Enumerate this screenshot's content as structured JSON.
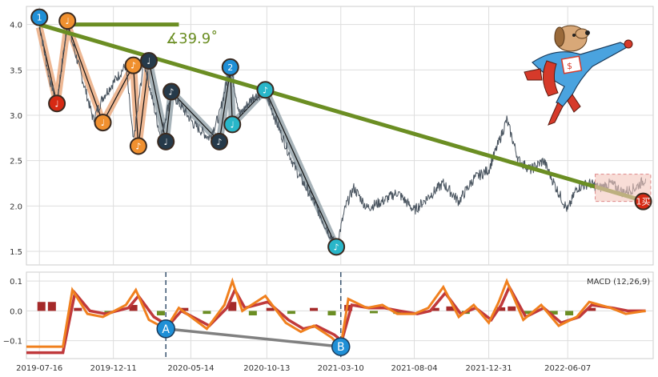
{
  "chart_data": {
    "type": "line",
    "x_tick_labels": [
      "2019-07-16",
      "2019-12-11",
      "2020-05-14",
      "2020-10-13",
      "2021-03-10",
      "2021-08-04",
      "2021-12-31",
      "2022-06-07"
    ],
    "x_tick_dates": [
      "2019-07-16",
      "2019-12-11",
      "2020-05-14",
      "2020-10-13",
      "2021-03-10",
      "2021-08-04",
      "2021-12-31",
      "2022-06-07"
    ],
    "x_range": [
      "2019-06-20",
      "2022-11-25"
    ],
    "price": {
      "ylim": [
        1.35,
        4.2
      ],
      "yticks": [
        "1.5",
        "2.0",
        "2.5",
        "3.0",
        "3.5",
        "4.0"
      ],
      "ytick_values": [
        1.5,
        2.0,
        2.5,
        3.0,
        3.5,
        4.0
      ],
      "series": [
        {
          "date": "2019-07-16",
          "value": 4.0
        },
        {
          "date": "2019-08-05",
          "value": 3.4
        },
        {
          "date": "2019-08-20",
          "value": 3.15
        },
        {
          "date": "2019-09-10",
          "value": 4.0
        },
        {
          "date": "2019-10-15",
          "value": 3.3
        },
        {
          "date": "2019-11-01",
          "value": 2.95
        },
        {
          "date": "2019-11-20",
          "value": 3.2
        },
        {
          "date": "2020-01-05",
          "value": 3.55
        },
        {
          "date": "2020-01-20",
          "value": 2.7
        },
        {
          "date": "2020-02-10",
          "value": 3.6
        },
        {
          "date": "2020-03-15",
          "value": 2.75
        },
        {
          "date": "2020-04-05",
          "value": 3.25
        },
        {
          "date": "2020-05-20",
          "value": 2.9
        },
        {
          "date": "2020-06-20",
          "value": 2.75
        },
        {
          "date": "2020-07-10",
          "value": 3.0
        },
        {
          "date": "2020-08-01",
          "value": 3.55
        },
        {
          "date": "2020-08-20",
          "value": 3.0
        },
        {
          "date": "2020-09-15",
          "value": 3.2
        },
        {
          "date": "2020-10-10",
          "value": 3.25
        },
        {
          "date": "2020-11-10",
          "value": 2.8
        },
        {
          "date": "2020-12-10",
          "value": 2.4
        },
        {
          "date": "2021-01-10",
          "value": 2.1
        },
        {
          "date": "2021-02-10",
          "value": 1.75
        },
        {
          "date": "2021-03-01",
          "value": 1.55
        },
        {
          "date": "2021-03-20",
          "value": 2.0
        },
        {
          "date": "2021-04-05",
          "value": 2.2
        },
        {
          "date": "2021-05-01",
          "value": 1.98
        },
        {
          "date": "2021-06-01",
          "value": 2.05
        },
        {
          "date": "2021-07-01",
          "value": 2.15
        },
        {
          "date": "2021-08-04",
          "value": 1.95
        },
        {
          "date": "2021-09-01",
          "value": 2.1
        },
        {
          "date": "2021-10-01",
          "value": 2.25
        },
        {
          "date": "2021-11-01",
          "value": 2.05
        },
        {
          "date": "2021-12-01",
          "value": 2.3
        },
        {
          "date": "2021-12-31",
          "value": 2.4
        },
        {
          "date": "2022-01-20",
          "value": 2.7
        },
        {
          "date": "2022-02-05",
          "value": 2.95
        },
        {
          "date": "2022-03-01",
          "value": 2.5
        },
        {
          "date": "2022-03-25",
          "value": 2.4
        },
        {
          "date": "2022-04-20",
          "value": 2.5
        },
        {
          "date": "2022-05-15",
          "value": 2.2
        },
        {
          "date": "2022-06-07",
          "value": 1.95
        },
        {
          "date": "2022-06-25",
          "value": 2.2
        },
        {
          "date": "2022-07-20",
          "value": 2.25
        },
        {
          "date": "2022-08-10",
          "value": 2.2
        },
        {
          "date": "2022-09-01",
          "value": 2.25
        },
        {
          "date": "2022-09-25",
          "value": 2.15
        },
        {
          "date": "2022-10-20",
          "value": 2.2
        },
        {
          "date": "2022-11-10",
          "value": 2.3
        }
      ],
      "trendline": [
        {
          "date": "2019-07-16",
          "value": 4.0
        },
        {
          "date": "2022-11-10",
          "value": 2.05
        }
      ],
      "horizontal_ref": [
        {
          "date": "2019-09-10",
          "value": 4.0
        },
        {
          "date": "2020-04-20",
          "value": 4.0
        }
      ],
      "angle_label": "∡39.9˚",
      "markers": [
        {
          "label": "1",
          "date": "2019-07-16",
          "value": 4.08,
          "color": "#1f8fd6"
        },
        {
          "label": "♩",
          "date": "2019-08-20",
          "value": 3.13,
          "color": "#d62a14"
        },
        {
          "label": "♩",
          "date": "2019-09-10",
          "value": 4.04,
          "color": "#f0902f"
        },
        {
          "label": "♩",
          "date": "2019-11-20",
          "value": 2.92,
          "color": "#f0902f"
        },
        {
          "label": "♪",
          "date": "2020-01-20",
          "value": 3.55,
          "color": "#f0902f"
        },
        {
          "label": "♪",
          "date": "2020-01-30",
          "value": 2.66,
          "color": "#f0902f"
        },
        {
          "label": "♩",
          "date": "2020-02-20",
          "value": 3.6,
          "color": "#263a4a"
        },
        {
          "label": "♩",
          "date": "2020-03-25",
          "value": 2.71,
          "color": "#263a4a"
        },
        {
          "label": "♪",
          "date": "2020-04-05",
          "value": 3.26,
          "color": "#263a4a"
        },
        {
          "label": "♪",
          "date": "2020-07-10",
          "value": 2.71,
          "color": "#263a4a"
        },
        {
          "label": "2",
          "date": "2020-08-01",
          "value": 3.53,
          "color": "#1f8fd6"
        },
        {
          "label": "♩",
          "date": "2020-08-05",
          "value": 2.9,
          "color": "#29b6c9"
        },
        {
          "label": "♪",
          "date": "2020-10-10",
          "value": 3.28,
          "color": "#29b6c9"
        },
        {
          "label": "♪",
          "date": "2021-03-01",
          "value": 1.55,
          "color": "#29b6c9"
        },
        {
          "label": "1买",
          "date": "2022-11-05",
          "value": 2.05,
          "color": "#d62a14"
        }
      ],
      "wave_paths": [
        {
          "color": "#e8a070",
          "points": [
            [
              "2019-07-16",
              3.97
            ],
            [
              "2019-08-20",
              3.13
            ],
            [
              "2019-09-10",
              4.0
            ],
            [
              "2019-11-20",
              2.92
            ],
            [
              "2020-01-20",
              3.55
            ],
            [
              "2020-01-30",
              2.66
            ],
            [
              "2020-02-20",
              3.6
            ]
          ]
        },
        {
          "color": "#8a9aa2",
          "points": [
            [
              "2020-02-20",
              3.6
            ],
            [
              "2020-03-25",
              2.71
            ],
            [
              "2020-04-05",
              3.26
            ],
            [
              "2020-07-10",
              2.71
            ],
            [
              "2020-08-01",
              3.5
            ],
            [
              "2020-08-05",
              2.9
            ],
            [
              "2020-10-10",
              3.28
            ],
            [
              "2021-03-01",
              1.55
            ]
          ]
        }
      ],
      "highlight_box": {
        "from": "2022-08-01",
        "to": "2022-11-20",
        "low": 2.05,
        "high": 2.35
      }
    },
    "macd": {
      "label": "MACD (12,26,9)",
      "ylim": [
        -0.16,
        0.13
      ],
      "yticks": [
        "0.1",
        "0.0",
        "−0.1"
      ],
      "ytick_values": [
        0.1,
        0.0,
        -0.1
      ],
      "dif": [
        {
          "date": "2019-06-20",
          "value": -0.12
        },
        {
          "date": "2019-09-01",
          "value": -0.12
        },
        {
          "date": "2019-09-20",
          "value": 0.07
        },
        {
          "date": "2019-10-20",
          "value": -0.01
        },
        {
          "date": "2019-11-20",
          "value": -0.02
        },
        {
          "date": "2020-01-05",
          "value": 0.02
        },
        {
          "date": "2020-01-25",
          "value": 0.07
        },
        {
          "date": "2020-02-20",
          "value": -0.03
        },
        {
          "date": "2020-03-25",
          "value": -0.06
        },
        {
          "date": "2020-04-20",
          "value": 0.01
        },
        {
          "date": "2020-06-15",
          "value": -0.06
        },
        {
          "date": "2020-07-20",
          "value": 0.02
        },
        {
          "date": "2020-08-05",
          "value": 0.1
        },
        {
          "date": "2020-08-25",
          "value": 0.0
        },
        {
          "date": "2020-10-10",
          "value": 0.05
        },
        {
          "date": "2020-11-20",
          "value": -0.04
        },
        {
          "date": "2020-12-20",
          "value": -0.07
        },
        {
          "date": "2021-01-15",
          "value": -0.05
        },
        {
          "date": "2021-02-20",
          "value": -0.09
        },
        {
          "date": "2021-03-10",
          "value": -0.12
        },
        {
          "date": "2021-03-25",
          "value": 0.04
        },
        {
          "date": "2021-05-01",
          "value": 0.01
        },
        {
          "date": "2021-06-01",
          "value": 0.02
        },
        {
          "date": "2021-07-01",
          "value": -0.01
        },
        {
          "date": "2021-08-04",
          "value": -0.01
        },
        {
          "date": "2021-09-01",
          "value": 0.01
        },
        {
          "date": "2021-10-01",
          "value": 0.08
        },
        {
          "date": "2021-11-01",
          "value": -0.02
        },
        {
          "date": "2021-12-01",
          "value": 0.02
        },
        {
          "date": "2021-12-31",
          "value": -0.04
        },
        {
          "date": "2022-01-20",
          "value": 0.03
        },
        {
          "date": "2022-02-05",
          "value": 0.1
        },
        {
          "date": "2022-03-10",
          "value": -0.03
        },
        {
          "date": "2022-04-15",
          "value": 0.02
        },
        {
          "date": "2022-05-20",
          "value": -0.05
        },
        {
          "date": "2022-06-25",
          "value": -0.02
        },
        {
          "date": "2022-07-20",
          "value": 0.03
        },
        {
          "date": "2022-09-01",
          "value": 0.01
        },
        {
          "date": "2022-10-01",
          "value": -0.01
        },
        {
          "date": "2022-11-10",
          "value": 0.0
        }
      ],
      "dea": [
        {
          "date": "2019-06-20",
          "value": -0.14
        },
        {
          "date": "2019-09-01",
          "value": -0.14
        },
        {
          "date": "2019-09-25",
          "value": 0.06
        },
        {
          "date": "2019-10-25",
          "value": 0.0
        },
        {
          "date": "2019-11-25",
          "value": -0.01
        },
        {
          "date": "2020-01-10",
          "value": 0.01
        },
        {
          "date": "2020-01-30",
          "value": 0.05
        },
        {
          "date": "2020-03-01",
          "value": -0.02
        },
        {
          "date": "2020-03-30",
          "value": -0.05
        },
        {
          "date": "2020-04-25",
          "value": 0.0
        },
        {
          "date": "2020-06-20",
          "value": -0.05
        },
        {
          "date": "2020-07-25",
          "value": 0.01
        },
        {
          "date": "2020-08-10",
          "value": 0.07
        },
        {
          "date": "2020-08-30",
          "value": 0.01
        },
        {
          "date": "2020-10-15",
          "value": 0.03
        },
        {
          "date": "2020-11-25",
          "value": -0.03
        },
        {
          "date": "2020-12-25",
          "value": -0.06
        },
        {
          "date": "2021-01-20",
          "value": -0.05
        },
        {
          "date": "2021-02-25",
          "value": -0.08
        },
        {
          "date": "2021-03-12",
          "value": -0.1
        },
        {
          "date": "2021-04-01",
          "value": 0.02
        },
        {
          "date": "2021-05-05",
          "value": 0.01
        },
        {
          "date": "2021-06-05",
          "value": 0.01
        },
        {
          "date": "2021-07-05",
          "value": 0.0
        },
        {
          "date": "2021-08-10",
          "value": -0.01
        },
        {
          "date": "2021-09-05",
          "value": 0.0
        },
        {
          "date": "2021-10-05",
          "value": 0.06
        },
        {
          "date": "2021-11-05",
          "value": -0.01
        },
        {
          "date": "2021-12-05",
          "value": 0.01
        },
        {
          "date": "2022-01-05",
          "value": -0.03
        },
        {
          "date": "2022-01-25",
          "value": 0.02
        },
        {
          "date": "2022-02-10",
          "value": 0.08
        },
        {
          "date": "2022-03-15",
          "value": -0.02
        },
        {
          "date": "2022-04-20",
          "value": 0.01
        },
        {
          "date": "2022-05-25",
          "value": -0.04
        },
        {
          "date": "2022-06-30",
          "value": -0.02
        },
        {
          "date": "2022-07-25",
          "value": 0.02
        },
        {
          "date": "2022-09-05",
          "value": 0.01
        },
        {
          "date": "2022-10-05",
          "value": 0.0
        },
        {
          "date": "2022-11-10",
          "value": 0.0
        }
      ],
      "hist": [
        {
          "date": "2019-07-20",
          "value": 0.03
        },
        {
          "date": "2019-08-10",
          "value": 0.03
        },
        {
          "date": "2019-10-01",
          "value": 0.01
        },
        {
          "date": "2019-12-01",
          "value": -0.01
        },
        {
          "date": "2020-01-20",
          "value": 0.02
        },
        {
          "date": "2020-03-15",
          "value": -0.015
        },
        {
          "date": "2020-05-01",
          "value": 0.01
        },
        {
          "date": "2020-06-15",
          "value": -0.01
        },
        {
          "date": "2020-08-05",
          "value": 0.03
        },
        {
          "date": "2020-09-15",
          "value": -0.015
        },
        {
          "date": "2020-10-20",
          "value": 0.01
        },
        {
          "date": "2020-12-01",
          "value": -0.01
        },
        {
          "date": "2021-01-15",
          "value": 0.01
        },
        {
          "date": "2021-02-20",
          "value": -0.015
        },
        {
          "date": "2021-03-25",
          "value": 0.02
        },
        {
          "date": "2021-05-15",
          "value": -0.008
        },
        {
          "date": "2021-07-01",
          "value": -0.01
        },
        {
          "date": "2021-09-15",
          "value": 0.01
        },
        {
          "date": "2021-10-15",
          "value": 0.015
        },
        {
          "date": "2021-11-15",
          "value": -0.01
        },
        {
          "date": "2022-01-25",
          "value": 0.012
        },
        {
          "date": "2022-02-15",
          "value": 0.015
        },
        {
          "date": "2022-03-20",
          "value": -0.01
        },
        {
          "date": "2022-05-10",
          "value": -0.012
        },
        {
          "date": "2022-06-10",
          "value": -0.015
        },
        {
          "date": "2022-07-25",
          "value": 0.01
        },
        {
          "date": "2022-09-20",
          "value": 0.005
        },
        {
          "date": "2022-10-20",
          "value": -0.005
        }
      ],
      "divergence": {
        "A": {
          "label": "A",
          "date": "2020-03-25",
          "value": -0.06
        },
        "B": {
          "label": "B",
          "date": "2021-03-10",
          "value": -0.12
        }
      },
      "vlines": [
        "2020-03-25",
        "2021-03-10"
      ]
    }
  },
  "colors": {
    "price_line": "#4a5560",
    "trendline": "#6b8e23",
    "dif": "#f0801e",
    "dea": "#c0393b",
    "hist_pos": "#a52a2a",
    "hist_neg": "#6b8e23",
    "divergence": "#808080"
  },
  "mascot": {
    "icon": "superhero-dog-mascot-icon"
  }
}
